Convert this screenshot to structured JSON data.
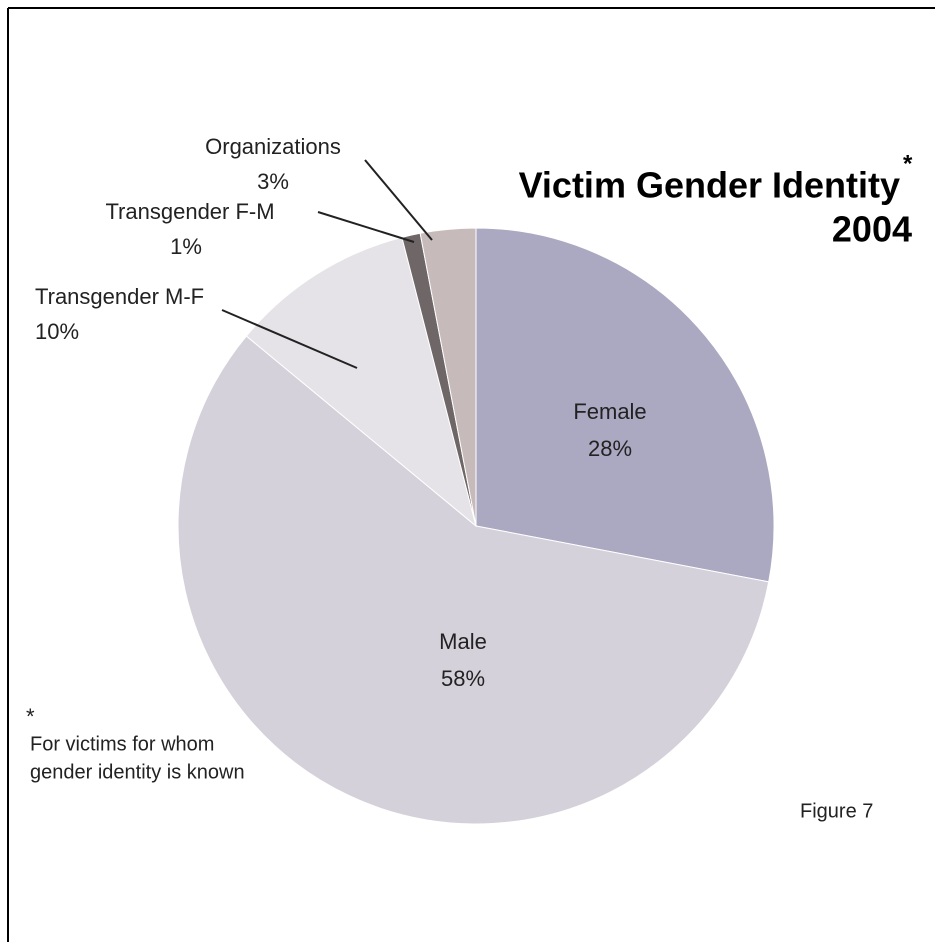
{
  "chart_data": {
    "type": "pie",
    "title": "Victim Gender Identity",
    "title_mark": "*",
    "subtitle": "2004",
    "categories": [
      "Female",
      "Male",
      "Transgender M-F",
      "Transgender F-M",
      "Organizations"
    ],
    "values": [
      28,
      58,
      10,
      1,
      3
    ],
    "value_labels": [
      "28%",
      "58%",
      "10%",
      "1%",
      "3%"
    ],
    "colors": [
      "#aba8c1",
      "#d4d1db",
      "#e5e3e7",
      "#6f6667",
      "#c6bbba"
    ],
    "footnote_mark": "*",
    "footnote": [
      "For victims for whom",
      "gender identity is known"
    ],
    "figure_label": "Figure 7"
  }
}
